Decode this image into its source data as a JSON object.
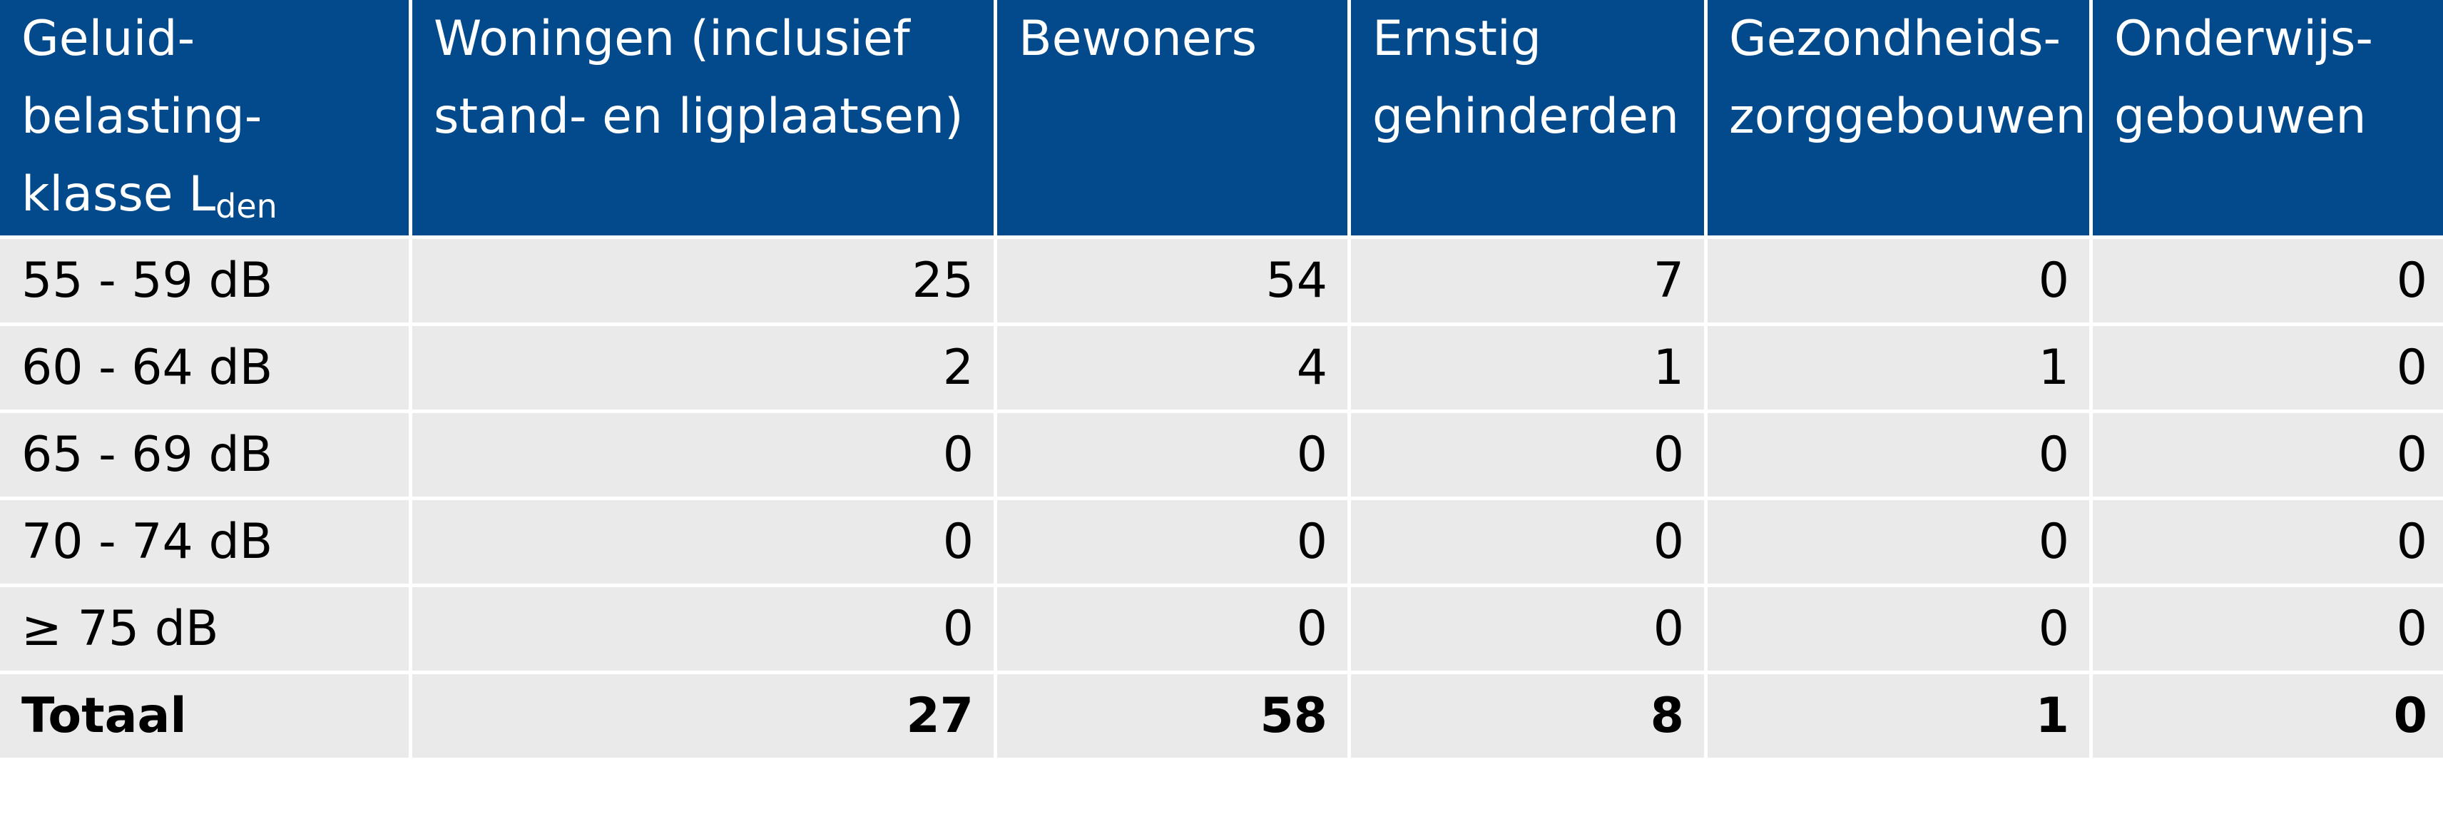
{
  "table": {
    "header": {
      "klasse": [
        "Geluid-",
        "belasting-",
        "klasse L"
      ],
      "klasse_sub": "den",
      "woningen": [
        "Woningen (inclusief",
        "stand- en ligplaatsen)"
      ],
      "bewoners": [
        "Bewoners"
      ],
      "gehinderden": [
        "Ernstig",
        "gehinderden"
      ],
      "gezondheid": [
        "Gezondheids-",
        "zorggebouwen"
      ],
      "onderwijs": [
        "Onderwijs-",
        "gebouwen"
      ]
    },
    "rows": [
      {
        "klasse": "55 - 59 dB",
        "woningen": "25",
        "bewoners": "54",
        "gehinderden": "7",
        "gezondheid": "0",
        "onderwijs": "0"
      },
      {
        "klasse": "60 - 64 dB",
        "woningen": "2",
        "bewoners": "4",
        "gehinderden": "1",
        "gezondheid": "1",
        "onderwijs": "0"
      },
      {
        "klasse": "65 - 69 dB",
        "woningen": "0",
        "bewoners": "0",
        "gehinderden": "0",
        "gezondheid": "0",
        "onderwijs": "0"
      },
      {
        "klasse": "70 - 74 dB",
        "woningen": "0",
        "bewoners": "0",
        "gehinderden": "0",
        "gezondheid": "0",
        "onderwijs": "0"
      },
      {
        "klasse": "≥ 75 dB",
        "woningen": "0",
        "bewoners": "0",
        "gehinderden": "0",
        "gezondheid": "0",
        "onderwijs": "0"
      }
    ],
    "total": {
      "klasse": "Totaal",
      "woningen": "27",
      "bewoners": "58",
      "gehinderden": "8",
      "gezondheid": "1",
      "onderwijs": "0"
    }
  },
  "colors": {
    "header_bg": "#024a8c",
    "header_text": "#ffffff",
    "body_bg": "#eaeaea"
  }
}
